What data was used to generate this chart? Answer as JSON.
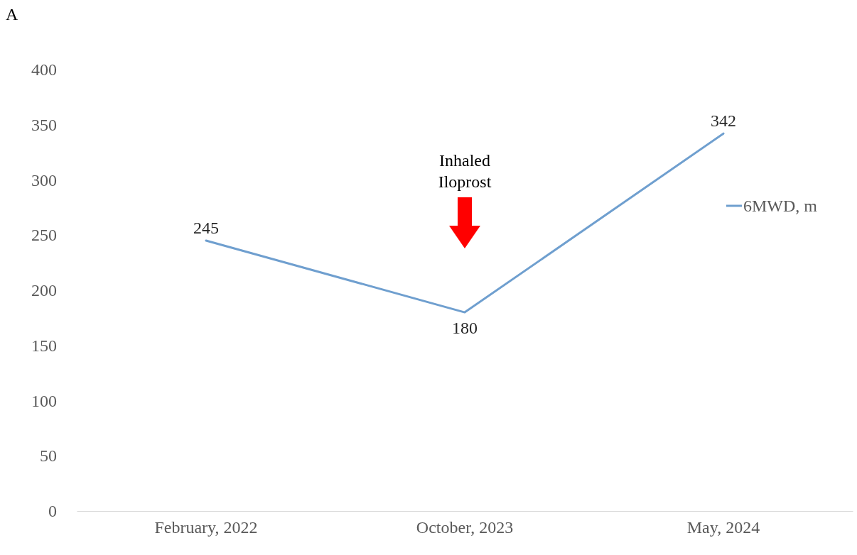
{
  "chart_data": {
    "type": "line",
    "title": "A",
    "categories": [
      "February, 2022",
      "October, 2023",
      "May, 2024"
    ],
    "series": [
      {
        "name": "6MWD, m",
        "color": "#6f9fcf",
        "values": [
          245,
          180,
          342
        ]
      }
    ],
    "ylim": [
      0,
      400
    ],
    "yticks": [
      0,
      50,
      100,
      150,
      200,
      250,
      300,
      350,
      400
    ],
    "grid": false,
    "legend": "right",
    "data_labels": true,
    "marker": "none",
    "line_style": "solid",
    "annotations": [
      "Inhaled Iloprost"
    ]
  }
}
